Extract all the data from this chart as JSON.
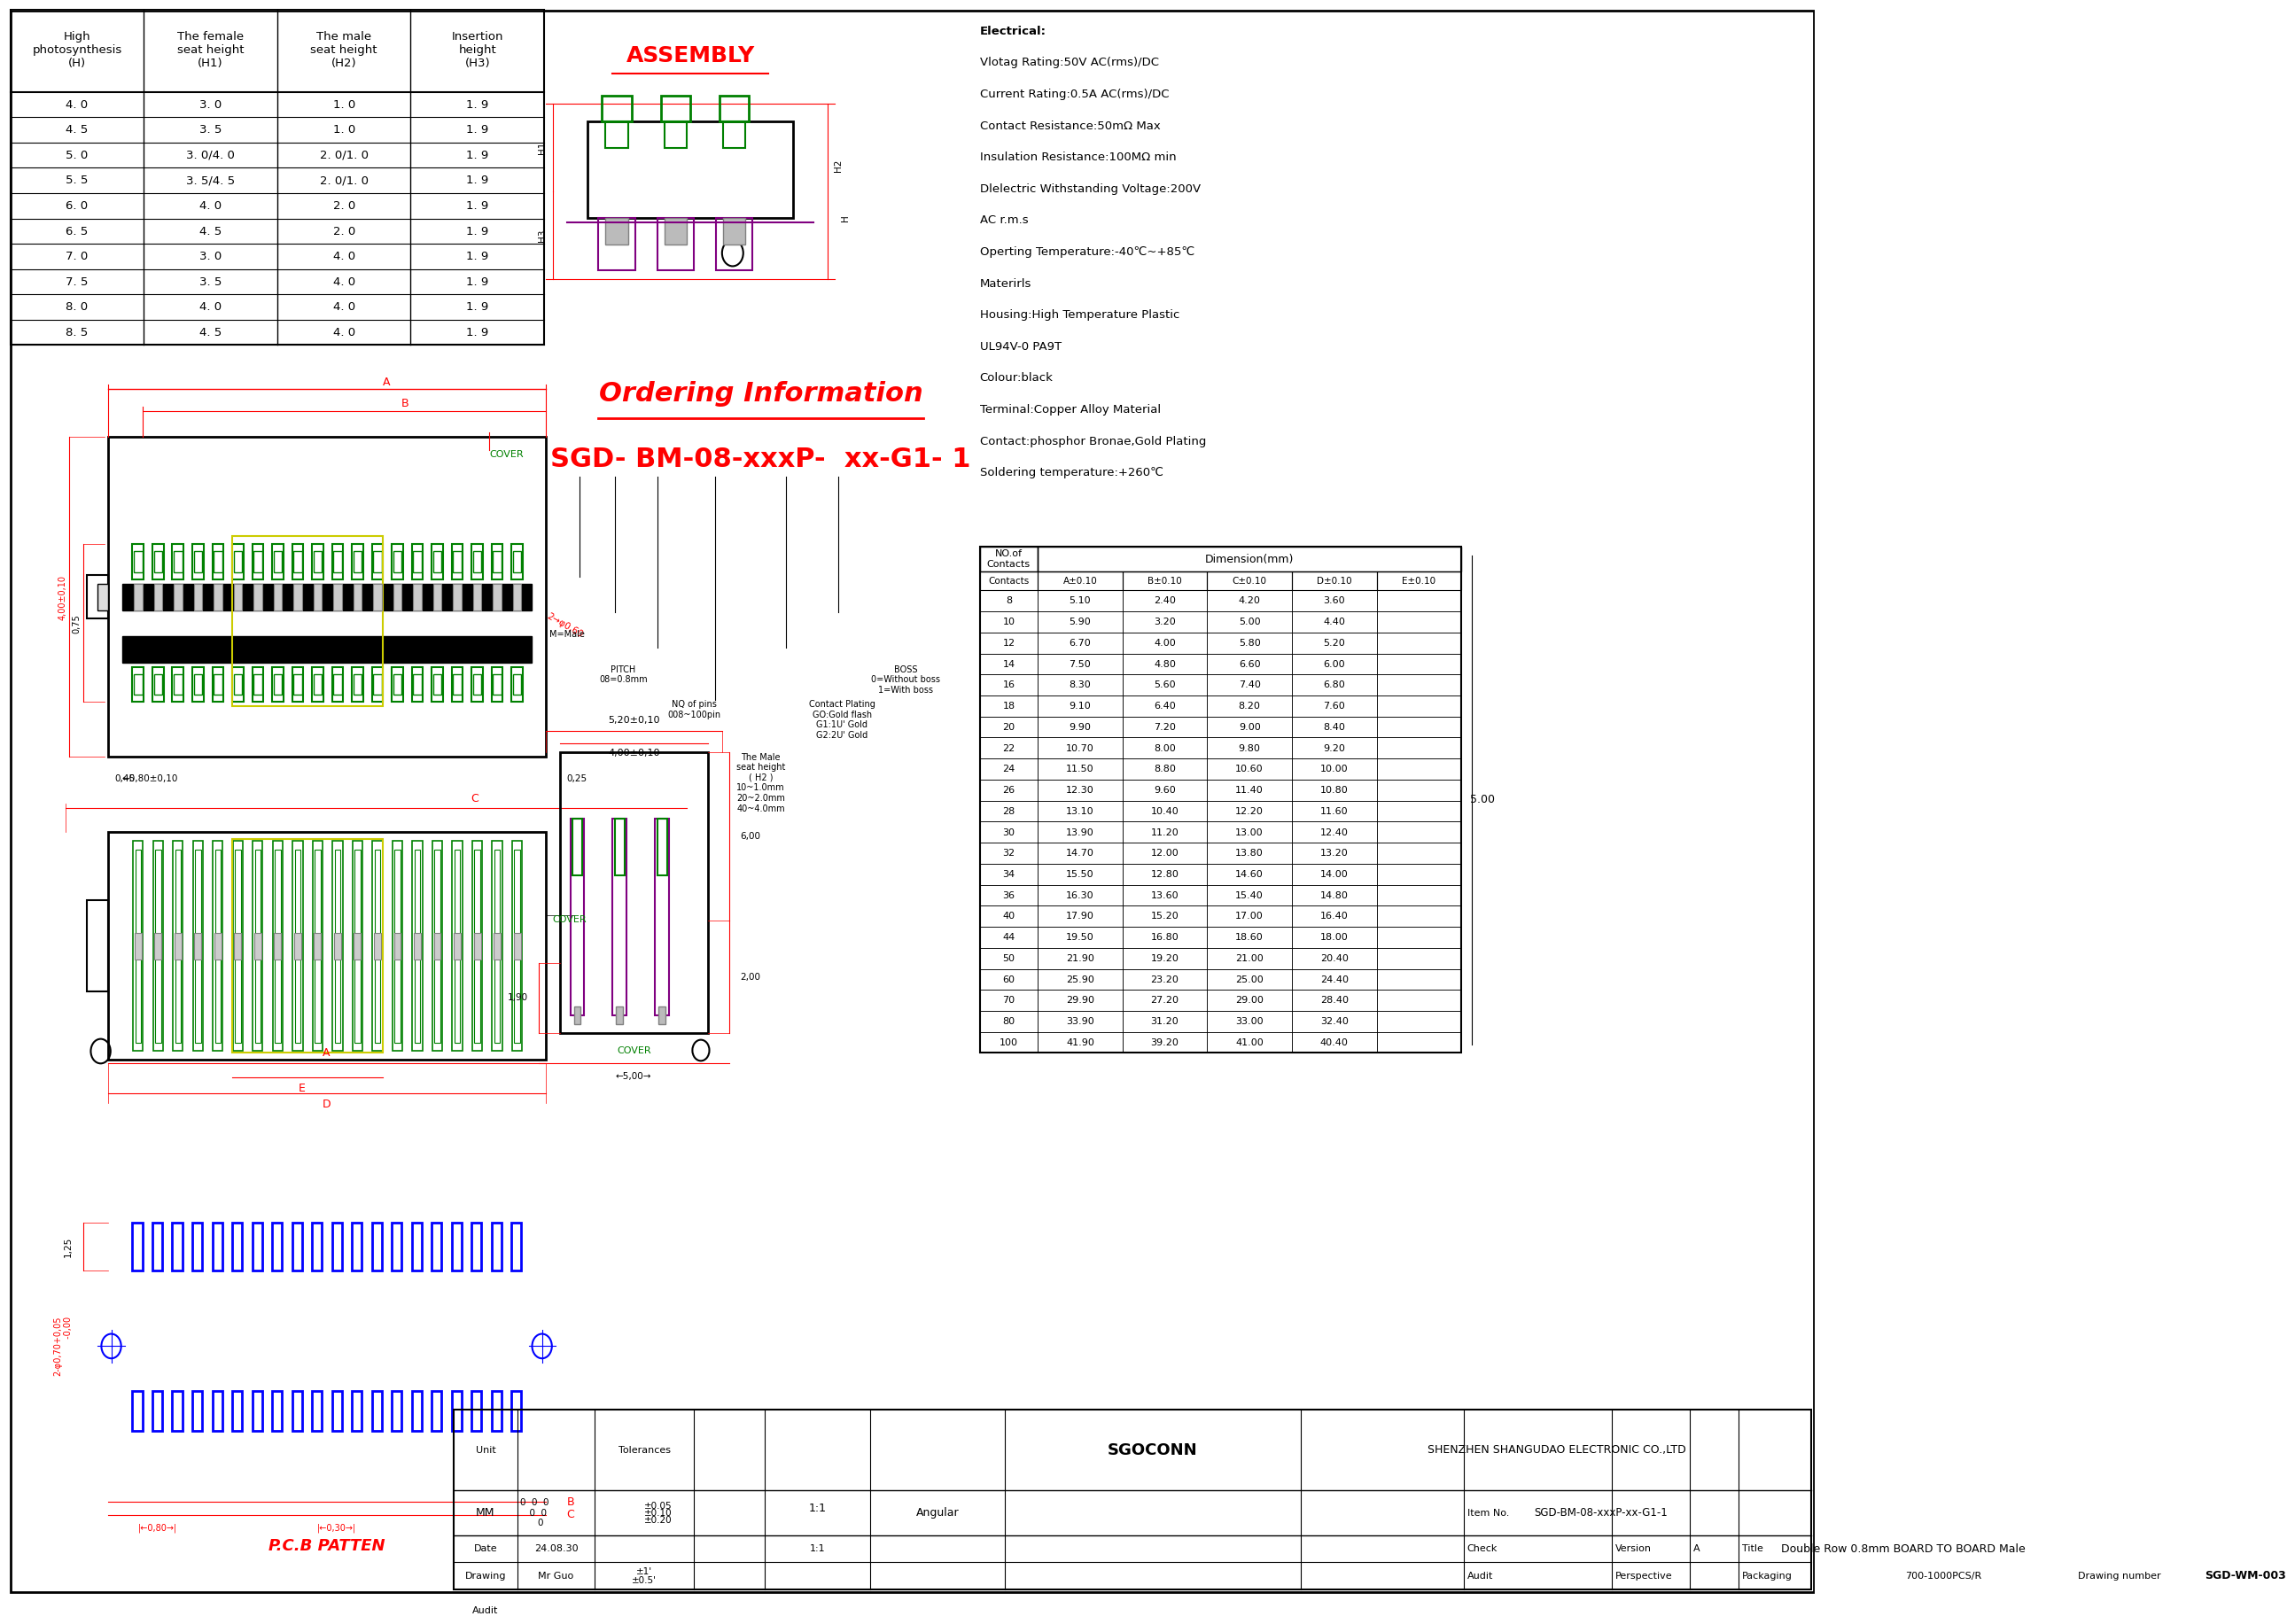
{
  "bg_color": "#ffffff",
  "table1_headers": [
    "High\nphotosynthesis\n(H)",
    "The female\nseat height\n(H1)",
    "The male\nseat height\n(H2)",
    "Insertion\nheight\n(H3)"
  ],
  "table1_data": [
    [
      "4. 0",
      "3. 0",
      "1. 0",
      "1. 9"
    ],
    [
      "4. 5",
      "3. 5",
      "1. 0",
      "1. 9"
    ],
    [
      "5. 0",
      "3. 0/4. 0",
      "2. 0/1. 0",
      "1. 9"
    ],
    [
      "5. 5",
      "3. 5/4. 5",
      "2. 0/1. 0",
      "1. 9"
    ],
    [
      "6. 0",
      "4. 0",
      "2. 0",
      "1. 9"
    ],
    [
      "6. 5",
      "4. 5",
      "2. 0",
      "1. 9"
    ],
    [
      "7. 0",
      "3. 0",
      "4. 0",
      "1. 9"
    ],
    [
      "7. 5",
      "3. 5",
      "4. 0",
      "1. 9"
    ],
    [
      "8. 0",
      "4. 0",
      "4. 0",
      "1. 9"
    ],
    [
      "8. 5",
      "4. 5",
      "4. 0",
      "1. 9"
    ]
  ],
  "table2_data": [
    [
      "8",
      "5.10",
      "2.40",
      "4.20",
      "3.60"
    ],
    [
      "10",
      "5.90",
      "3.20",
      "5.00",
      "4.40"
    ],
    [
      "12",
      "6.70",
      "4.00",
      "5.80",
      "5.20"
    ],
    [
      "14",
      "7.50",
      "4.80",
      "6.60",
      "6.00"
    ],
    [
      "16",
      "8.30",
      "5.60",
      "7.40",
      "6.80"
    ],
    [
      "18",
      "9.10",
      "6.40",
      "8.20",
      "7.60"
    ],
    [
      "20",
      "9.90",
      "7.20",
      "9.00",
      "8.40"
    ],
    [
      "22",
      "10.70",
      "8.00",
      "9.80",
      "9.20"
    ],
    [
      "24",
      "11.50",
      "8.80",
      "10.60",
      "10.00"
    ],
    [
      "26",
      "12.30",
      "9.60",
      "11.40",
      "10.80"
    ],
    [
      "28",
      "13.10",
      "10.40",
      "12.20",
      "11.60"
    ],
    [
      "30",
      "13.90",
      "11.20",
      "13.00",
      "12.40"
    ],
    [
      "32",
      "14.70",
      "12.00",
      "13.80",
      "13.20"
    ],
    [
      "34",
      "15.50",
      "12.80",
      "14.60",
      "14.00"
    ],
    [
      "36",
      "16.30",
      "13.60",
      "15.40",
      "14.80"
    ],
    [
      "40",
      "17.90",
      "15.20",
      "17.00",
      "16.40"
    ],
    [
      "44",
      "19.50",
      "16.80",
      "18.60",
      "18.00"
    ],
    [
      "50",
      "21.90",
      "19.20",
      "21.00",
      "20.40"
    ],
    [
      "60",
      "25.90",
      "23.20",
      "25.00",
      "24.40"
    ],
    [
      "70",
      "29.90",
      "27.20",
      "29.00",
      "28.40"
    ],
    [
      "80",
      "33.90",
      "31.20",
      "33.00",
      "32.40"
    ],
    [
      "100",
      "41.90",
      "39.20",
      "41.00",
      "40.40"
    ]
  ],
  "table2_note": "5.00",
  "electrical_text": [
    "Electrical:",
    "Vlotag Rating:50V AC(rms)/DC",
    "Current Rating:0.5A AC(rms)/DC",
    "Contact Resistance:50mΩ Max",
    "Insulation Resistance:100MΩ min",
    "Dlelectric Withstanding Voltage:200V",
    "AC r.m.s",
    "Operting Temperature:-40℃~+85℃",
    "Materirls",
    "Housing:High Temperature Plastic",
    "UL94V-0 PA9T",
    "Colour:black",
    "Terminal:Copper Alloy Material",
    "Contact:phosphor Bronae,Gold Plating",
    "Soldering temperature:+260℃"
  ],
  "ordering_title": "Ordering Information",
  "ordering_code": "SGD- BM-08-xxxP-  xx-G1- 1",
  "assembly_title": "ASSEMBLY",
  "pcb_title": "P.C.B PATTEN",
  "footer_data": {
    "unit": "MM",
    "company": "SGOCONN",
    "company_full": "SHENZHEN SHANGUDAO ELECTRONIC CO.,LTD",
    "date": "24.08.30",
    "scale": "1:1",
    "angular": "Angular",
    "drawing": "Mr Guo",
    "item_no": "SGD-BM-08-xxxP-xx-G1-1",
    "version": "A",
    "title": "Double Row 0.8mm BOARD TO BOARD Male",
    "packaging": "700-1000PCS/R",
    "drawing_number": "SGD-WM-003"
  }
}
